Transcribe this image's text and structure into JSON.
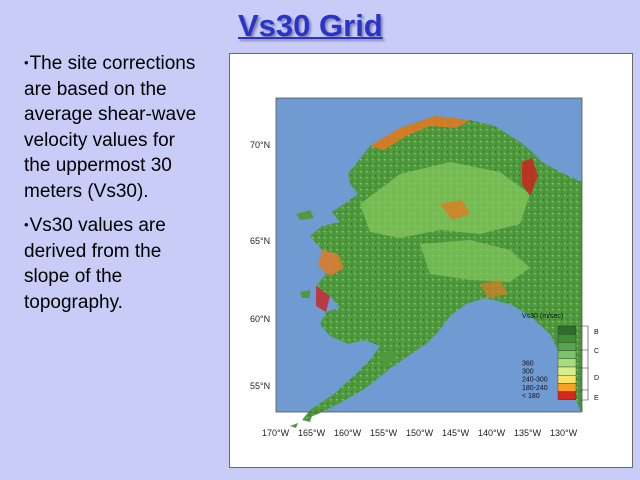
{
  "slide": {
    "title": "Vs30 Grid",
    "bullets": [
      "The site corrections are based on the average shear-wave velocity values for the uppermost 30 meters (Vs30).",
      "Vs30 values are derived from the slope of the topography."
    ],
    "bullet_marker": "•"
  },
  "map": {
    "lat_labels": [
      "70°N",
      "65°N",
      "60°N",
      "55°N"
    ],
    "lon_labels": [
      "170°W",
      "165°W",
      "160°W",
      "155°W",
      "150°W",
      "145°W",
      "140°W",
      "135°W",
      "130°W"
    ],
    "legend": {
      "title": "Vs30 (m/sec)",
      "classes": [
        {
          "label": "",
          "color": "#2d6e2a"
        },
        {
          "label": "",
          "color": "#3f8d36"
        },
        {
          "label": "",
          "color": "#54a84a"
        },
        {
          "label": "",
          "color": "#7ac36a"
        },
        {
          "label": "360",
          "color": "#a9dc7c"
        },
        {
          "label": "300",
          "color": "#d8ee8a"
        },
        {
          "label": "240-300",
          "color": "#f6e36a"
        },
        {
          "label": "180-240",
          "color": "#f4a326"
        },
        {
          "label": "< 180",
          "color": "#d8281e"
        }
      ],
      "site_classes": [
        "B",
        "C",
        "D",
        "E"
      ]
    },
    "colors": {
      "ocean": "#6f9ad2",
      "land_base": "#4f9a3e",
      "land_light": "#84c75e",
      "land_dark": "#2f6f2c",
      "low_vs": "#e07a22",
      "very_low_vs": "#c8241e"
    }
  }
}
